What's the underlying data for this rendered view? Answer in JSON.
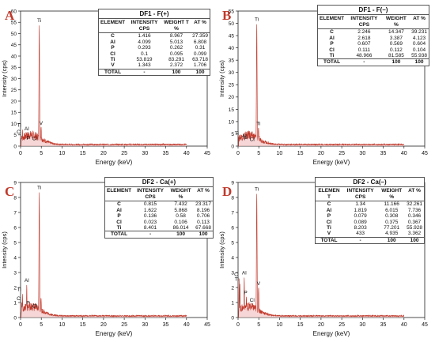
{
  "chart_data": [
    {
      "type": "line",
      "panel_label": "A",
      "xlabel": "Energy (keV)",
      "ylabel": "Intensity (cps)",
      "xlim": [
        0,
        45
      ],
      "xticks": [
        0,
        5,
        10,
        15,
        20,
        25,
        30,
        35,
        40,
        45
      ],
      "ylim": [
        0,
        60
      ],
      "yticks": [
        0,
        5,
        10,
        15,
        20,
        25,
        30,
        35,
        40,
        45,
        50,
        55,
        60
      ],
      "peaks": [
        {
          "label": "C",
          "x": 0.28,
          "y": 4.5
        },
        {
          "label": "Ti",
          "x": 0.45,
          "y": 7.5
        },
        {
          "label": "Al",
          "x": 1.49,
          "y": 6.0
        },
        {
          "label": "P",
          "x": 2.01,
          "y": 1.8
        },
        {
          "label": "Cl",
          "x": 2.62,
          "y": 1.5
        },
        {
          "label": "Ti",
          "x": 4.51,
          "y": 54
        },
        {
          "label": "V",
          "x": 4.95,
          "y": 8.5
        }
      ],
      "table": {
        "title": "DF1 - F(+)",
        "headers": [
          "ELEMENT",
          "INTENSITY CPS",
          "WEIGHT T %",
          "AT %"
        ],
        "rows": [
          [
            "C",
            "1.416",
            "8.967",
            "27.359"
          ],
          [
            "Al",
            "4.099",
            "5.013",
            "6.808"
          ],
          [
            "P",
            "0.293",
            "0.262",
            "0.31"
          ],
          [
            "Cl",
            "0.1",
            "0.095",
            "0.099"
          ],
          [
            "Ti",
            "53.819",
            "83.291",
            "63.718"
          ],
          [
            "V",
            "1.343",
            "2.372",
            "1.706"
          ],
          [
            "TOTAL",
            "-",
            "100",
            "100"
          ]
        ]
      }
    },
    {
      "type": "line",
      "panel_label": "B",
      "xlabel": "Energy (keV)",
      "ylabel": "Intensity (cps)",
      "xlim": [
        0,
        45
      ],
      "xticks": [
        0,
        5,
        10,
        15,
        20,
        25,
        30,
        35,
        40,
        45
      ],
      "ylim": [
        0,
        55
      ],
      "yticks": [
        0,
        5,
        10,
        15,
        20,
        25,
        30,
        35,
        40,
        45,
        50,
        55
      ],
      "peaks": [
        {
          "label": "Ti",
          "x": 0.45,
          "y": 3.5
        },
        {
          "label": "Al",
          "x": 1.49,
          "y": 2.5
        },
        {
          "label": "P",
          "x": 2.01,
          "y": 1.4
        },
        {
          "label": "Cl",
          "x": 2.62,
          "y": 1.2
        },
        {
          "label": "Ti",
          "x": 4.51,
          "y": 50
        },
        {
          "label": "Ti",
          "x": 4.93,
          "y": 7.5
        }
      ],
      "table": {
        "title": "DF1 - F(–)",
        "headers": [
          "ELEMENT",
          "INTENSITY CPS",
          "WEIGHT %",
          "AT %"
        ],
        "rows": [
          [
            "C",
            "2.246",
            "14.347",
            "39.231"
          ],
          [
            "Al",
            "2.618",
            "3.387",
            "4.123"
          ],
          [
            "P",
            "0.607",
            "0.569",
            "0.604"
          ],
          [
            "Cl",
            "0.111",
            "0.112",
            "0.104"
          ],
          [
            "Ti",
            "48.966",
            "81.585",
            "55.938"
          ],
          [
            "TOTAL",
            "-",
            "100",
            "100"
          ]
        ]
      }
    },
    {
      "type": "line",
      "panel_label": "C",
      "xlabel": "Energy (keV)",
      "ylabel": "Intensity (cps)",
      "xlim": [
        0,
        45
      ],
      "xticks": [
        0,
        5,
        10,
        15,
        20,
        25,
        30,
        35,
        40,
        45
      ],
      "ylim": [
        0,
        9
      ],
      "yticks": [
        0,
        1,
        2,
        3,
        4,
        5,
        6,
        7,
        8,
        9
      ],
      "peaks": [
        {
          "label": "C",
          "x": 0.28,
          "y": 1.0
        },
        {
          "label": "Ti",
          "x": 0.45,
          "y": 1.6
        },
        {
          "label": "Al",
          "x": 1.49,
          "y": 2.2
        },
        {
          "label": "P",
          "x": 2.01,
          "y": 0.7
        },
        {
          "label": "Cl",
          "x": 2.62,
          "y": 0.5
        },
        {
          "label": "Ti",
          "x": 4.51,
          "y": 8.4
        },
        {
          "label": "",
          "x": 4.93,
          "y": 1.3
        }
      ],
      "table": {
        "title": "DF2 - Ca(+)",
        "headers": [
          "ELEMENT",
          "INTENSITY CPS",
          "WEIGHT %",
          "AT %"
        ],
        "rows": [
          [
            "C",
            "0.815",
            "7.432",
            "23.317"
          ],
          [
            "Al",
            "1.622",
            "5.868",
            "8.196"
          ],
          [
            "P",
            "0.136",
            "0.58",
            "0.706"
          ],
          [
            "Cl",
            "0.023",
            "0.106",
            "0.113"
          ],
          [
            "Ti",
            "8.401",
            "86.014",
            "67.668"
          ],
          [
            "TOTAL",
            "-",
            "100",
            "100"
          ]
        ]
      }
    },
    {
      "type": "line",
      "panel_label": "D",
      "xlabel": "Energy (keV)",
      "ylabel": "Intensity (cps)",
      "xlim": [
        0,
        45
      ],
      "xticks": [
        0,
        5,
        10,
        15,
        20,
        25,
        30,
        35,
        40,
        45
      ],
      "ylim": [
        0,
        9
      ],
      "yticks": [
        0,
        1,
        2,
        3,
        4,
        5,
        6,
        7,
        8,
        9
      ],
      "peaks": [
        {
          "label": "C",
          "x": 0.28,
          "y": 2.6
        },
        {
          "label": "Ti",
          "x": 0.45,
          "y": 2.3
        },
        {
          "label": "Al",
          "x": 1.49,
          "y": 2.7
        },
        {
          "label": "P",
          "x": 2.01,
          "y": 1.4
        },
        {
          "label": "Cl",
          "x": 2.62,
          "y": 0.9
        },
        {
          "label": "Ti",
          "x": 4.51,
          "y": 8.3
        },
        {
          "label": "V",
          "x": 4.95,
          "y": 2.0
        }
      ],
      "table": {
        "title": "DF2 - Ca(–)",
        "headers": [
          "ELEMEN T",
          "INTENSITY CPS",
          "WEIGHT %",
          "AT %"
        ],
        "rows": [
          [
            "C",
            "1.34",
            "11.166",
            "32.261"
          ],
          [
            "Al",
            "1.819",
            "6.015",
            "7.736"
          ],
          [
            "P",
            "0.079",
            "0.308",
            "0.346"
          ],
          [
            "Cl",
            "0.089",
            "0.375",
            "0.367"
          ],
          [
            "Ti",
            "8.203",
            "77.201",
            "55.928"
          ],
          [
            "V",
            "433",
            "4.935",
            "3.362"
          ],
          [
            "TOTAL",
            "-",
            "100",
            "100"
          ]
        ]
      }
    }
  ],
  "colors": {
    "spectrum_line": "#c0392b",
    "spectrum_fill": "#f2c4c4",
    "panel_label": "#c0392b",
    "axis": "#222222"
  }
}
